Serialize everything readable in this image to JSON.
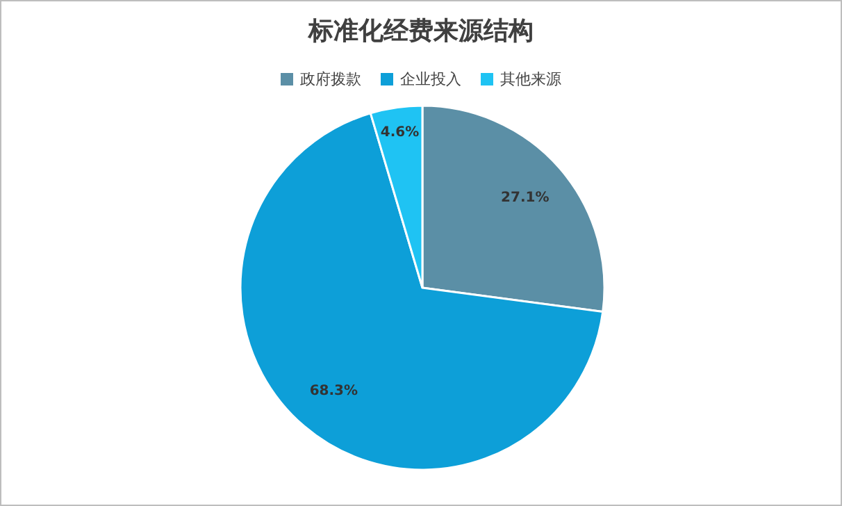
{
  "chart_data": {
    "type": "pie",
    "title": "标准化经费来源结构",
    "categories": [
      "政府拨款",
      "企业投入",
      "其他来源"
    ],
    "values": [
      27.1,
      68.3,
      4.6
    ],
    "colors": [
      "#5b8fa6",
      "#0d9fd8",
      "#1fc3f3"
    ],
    "value_labels": [
      "27.1%",
      "68.3%",
      "4.6%"
    ],
    "legend": "top"
  }
}
